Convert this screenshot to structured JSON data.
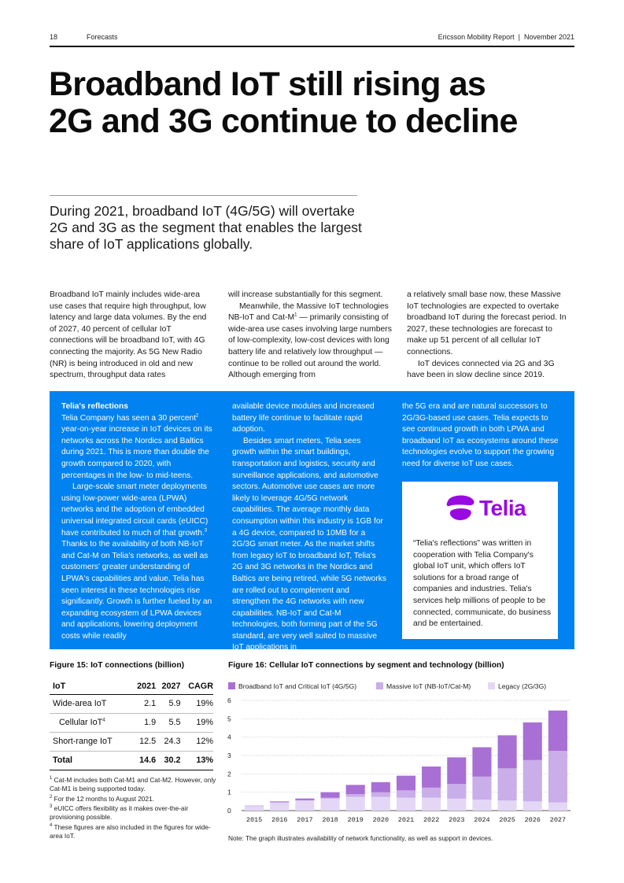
{
  "header": {
    "page_number": "18",
    "section": "Forecasts",
    "report": "Ericsson Mobility Report  |  November 2021"
  },
  "title_line1": "Broadband IoT still rising as",
  "title_line2": "2G and 3G continue to decline",
  "lead": "During 2021, broadband IoT (4G/5G) will overtake 2G and 3G as the segment that enables the largest share of IoT applications globally.",
  "body": {
    "col1_p1": "Broadband IoT mainly includes wide-area use cases that require high throughput, low latency and large data volumes. By the end of 2027, 40 percent of cellular IoT connections will be broadband IoT, with 4G connecting the majority. As 5G New Radio (NR) is being introduced in old and new spectrum, throughput data rates",
    "col2_p1": "will increase substantially for this segment.",
    "col2_p2a": "Meanwhile, the Massive IoT technologies NB-IoT and Cat-M",
    "col2_p2_sup": "1",
    "col2_p2b": " — primarily consisting of wide-area use cases involving large numbers of low-complexity, low-cost devices with long battery life and relatively low throughput — continue to be rolled out around the world. Although emerging from",
    "col3_p1": "a relatively small base now, these Massive IoT technologies are expected to overtake broadband IoT during the forecast period. In 2027, these technologies are forecast to make up 51 percent of all cellular IoT connections.",
    "col3_p2": "IoT devices connected via 2G and 3G have been in slow decline since 2019."
  },
  "box": {
    "heading": "Telia's reflections",
    "c1_p1a": "Telia Company has seen a 30 percent",
    "c1_p1_sup": "2",
    "c1_p1b": " year-on-year increase in IoT devices on its networks across the Nordics and Baltics during 2021. This is more than double the growth compared to 2020, with percentages in the low- to mid-teens.",
    "c1_p2a": "Large-scale smart meter deployments using low-power wide-area (LPWA) networks and the adoption of embedded universal integrated circuit cards (eUICC) have contributed to much of that growth.",
    "c1_p2_sup": "3",
    "c1_p2b": " Thanks to the availability of both NB-IoT and Cat-M on Telia's networks, as well as customers' greater understanding of LPWA's capabilities and value, Telia has seen interest in these technologies rise significantly. Growth is further fueled by an expanding ecosystem of LPWA devices and applications, lowering deployment costs while readily",
    "c2_p1": "available device modules and increased battery life continue to facilitate rapid adoption.",
    "c2_p2": "Besides smart meters, Telia sees growth within the smart buildings, transportation and logistics, security and surveillance applications, and automotive sectors. Automotive use cases are more likely to leverage 4G/5G network capabilities. The average monthly data consumption within this industry is 1GB for a 4G device, compared to 10MB for a 2G/3G smart meter. As the market shifts from legacy IoT to broadband IoT, Telia's 2G and 3G networks in the Nordics and Baltics are being retired, while 5G networks are rolled out to complement and strengthen the 4G networks with new capabilities. NB-IoT and Cat-M technologies, both forming part of the 5G standard, are very well suited to massive IoT applications in",
    "c3_p1": "the 5G era and are natural successors to 2G/3G-based use cases. Telia expects to see continued growth in both LPWA and broadband IoT as ecosystems around these technologies evolve to support the growing need for diverse IoT use cases.",
    "logo_text": "Telia",
    "card_text": "“Telia's reflections” was written in cooperation with Telia Company's global IoT unit, which offers IoT solutions for a broad range of companies and industries. Telia's services help millions of people to be connected, communicate, do business and be entertained."
  },
  "fig15": {
    "title": "Figure 15: IoT connections (billion)",
    "headers": [
      "IoT",
      "2021",
      "2027",
      "CAGR"
    ],
    "rows": [
      {
        "label": "Wide-area IoT",
        "sup": "",
        "v2021": "2.1",
        "v2027": "5.9",
        "cagr": "19%"
      },
      {
        "label": "Cellular IoT",
        "sup": "4",
        "v2021": "1.9",
        "v2027": "5.5",
        "cagr": "19%"
      },
      {
        "label": "Short-range IoT",
        "sup": "",
        "v2021": "12.5",
        "v2027": "24.3",
        "cagr": "12%"
      },
      {
        "label": "Total",
        "sup": "",
        "v2021": "14.6",
        "v2027": "30.2",
        "cagr": "13%"
      }
    ],
    "footnotes": [
      {
        "n": "1",
        "text": "Cat-M includes both Cat-M1 and Cat-M2. However, only Cat-M1 is being supported today."
      },
      {
        "n": "2",
        "text": "For the 12 months to August 2021."
      },
      {
        "n": "3",
        "text": "eUICC offers flexibility as it makes over-the-air provisioning possible."
      },
      {
        "n": "4",
        "text": "These figures are also included in the figures for wide-area IoT."
      }
    ]
  },
  "fig16": {
    "title": "Figure 16: Cellular IoT connections by segment and technology (billion)",
    "note": "Note: The graph illustrates availability of network functionality, as well as support in devices."
  },
  "chart_data": {
    "type": "bar",
    "stacked": true,
    "title": "Figure 16: Cellular IoT connections by segment and technology (billion)",
    "categories": [
      "2015",
      "2016",
      "2017",
      "2018",
      "2019",
      "2020",
      "2021",
      "2022",
      "2023",
      "2024",
      "2025",
      "2026",
      "2027"
    ],
    "ylim": [
      0,
      6
    ],
    "yticks": [
      0,
      1,
      2,
      3,
      4,
      5,
      6
    ],
    "grid": true,
    "legend_position": "top",
    "series": [
      {
        "name": "Legacy (2G/3G)",
        "color": "#e4d7f5",
        "values": [
          0.25,
          0.45,
          0.55,
          0.65,
          0.75,
          0.75,
          0.7,
          0.7,
          0.65,
          0.6,
          0.55,
          0.5,
          0.45
        ]
      },
      {
        "name": "Massive IoT (NB-IoT/Cat-M)",
        "color": "#c9aee9",
        "values": [
          0.0,
          0.0,
          0.01,
          0.05,
          0.15,
          0.25,
          0.4,
          0.55,
          0.8,
          1.25,
          1.75,
          2.25,
          2.8
        ]
      },
      {
        "name": "Broadband IoT and Critical IoT (4G/5G)",
        "color": "#a86fd5",
        "values": [
          0.02,
          0.05,
          0.1,
          0.3,
          0.5,
          0.55,
          0.8,
          1.15,
          1.45,
          1.6,
          1.8,
          2.05,
          2.2
        ]
      }
    ],
    "legend_order": [
      "Broadband IoT and Critical IoT (4G/5G)",
      "Massive IoT (NB-IoT/Cat-M)",
      "Legacy (2G/3G)"
    ]
  }
}
